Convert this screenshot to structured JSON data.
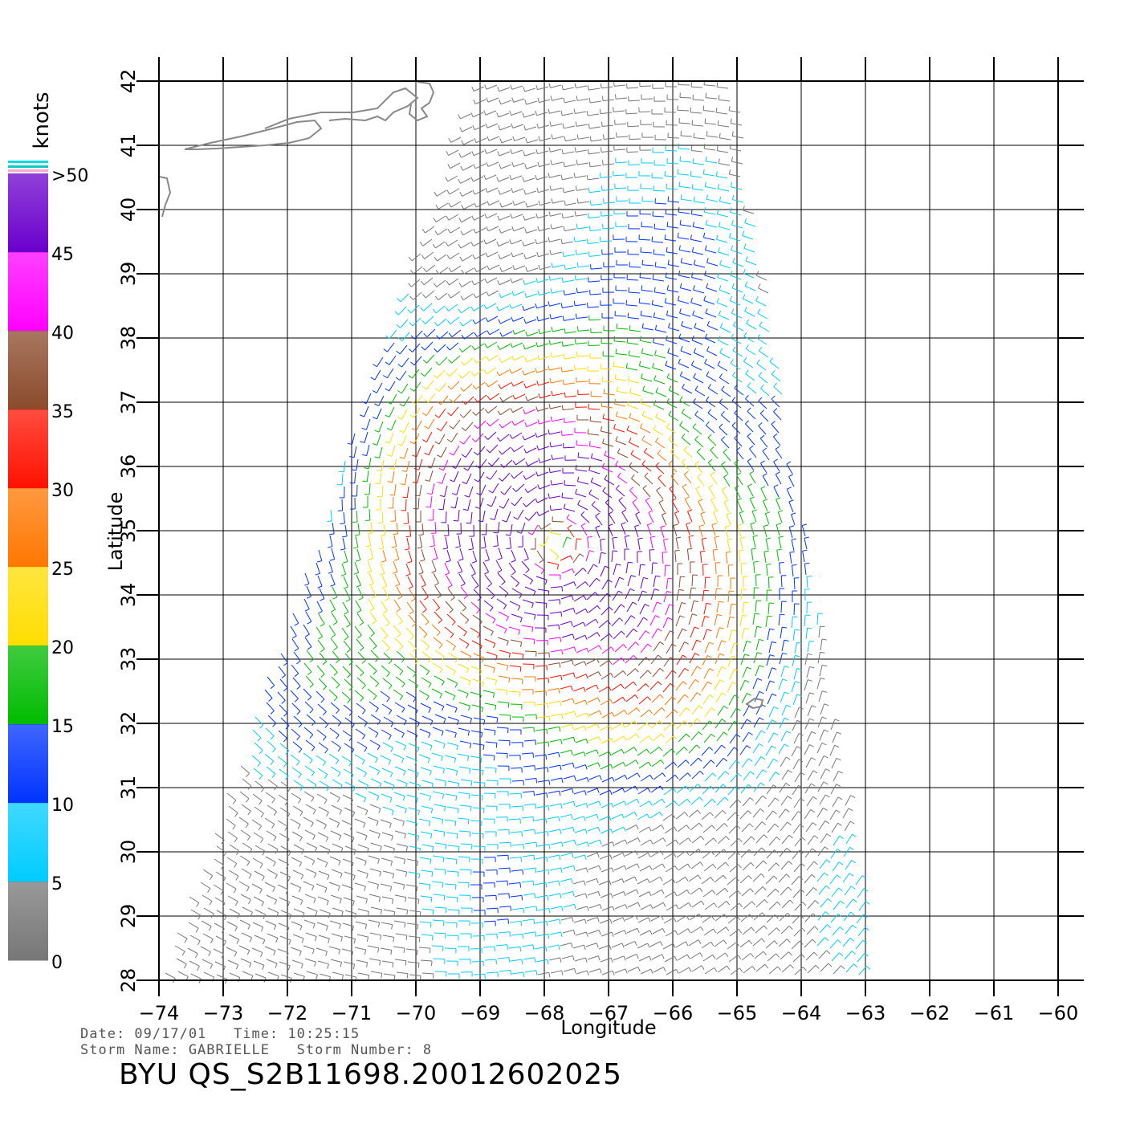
{
  "map": {
    "xlabel": "Longitude",
    "ylabel": "Latitude",
    "lon_range": [
      -74,
      -60
    ],
    "lat_range": [
      28,
      42
    ],
    "lon_ticks": [
      "−74",
      "−73",
      "−72",
      "−71",
      "−70",
      "−69",
      "−68",
      "−67",
      "−66",
      "−65",
      "−64",
      "−63",
      "−62",
      "−61",
      "−60"
    ],
    "lat_ticks": [
      "28",
      "29",
      "30",
      "31",
      "32",
      "33",
      "34",
      "35",
      "36",
      "37",
      "38",
      "39",
      "40",
      "41",
      "42"
    ],
    "grid": true,
    "storm_center": {
      "lon": -67.8,
      "lat": 34.8
    },
    "swath_corners": [
      [
        -69,
        42
      ],
      [
        -65,
        42
      ],
      [
        -62.9,
        28
      ],
      [
        -74,
        28
      ]
    ]
  },
  "colorbar": {
    "unit": "knots",
    "labels": [
      ">50",
      "45",
      "40",
      "35",
      "30",
      "25",
      "20",
      "15",
      "10",
      "5",
      "0"
    ],
    "colors": {
      "0-5": "#777777",
      "5-10": "#00ccff",
      "10-15": "#0033ff",
      "15-20": "#00bb00",
      "20-25": "#ffdd00",
      "25-30": "#ff7700",
      "30-35": "#ff1100",
      "35-40": "#8b4a2b",
      "40-45": "#ff00ff",
      "45-50": "#6a00cc"
    }
  },
  "footer": {
    "date_line": "Date: 09/17/01   Time: 10:25:15",
    "storm_line": "Storm Name: GABRIELLE   Storm Number: 8",
    "title": "BYU QS_S2B11698.20012602025"
  }
}
